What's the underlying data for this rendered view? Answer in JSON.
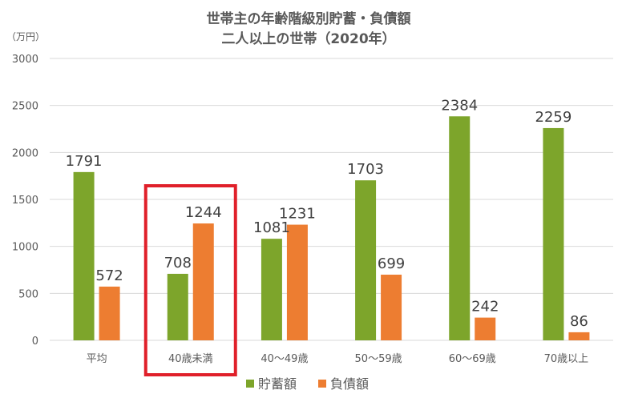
{
  "chart_data": {
    "type": "bar",
    "title": "世帯主の年齢階級別貯蓄・負債額",
    "subtitle": "二人以上の世帯（2020年）",
    "unit_label": "（万円）",
    "categories": [
      "平均",
      "40歳未満",
      "40～49歳",
      "50～59歳",
      "60～69歳",
      "70歳以上"
    ],
    "series": [
      {
        "name": "貯蓄額",
        "color": "#7da52b",
        "values": [
          1791,
          708,
          1081,
          1703,
          2384,
          2259
        ]
      },
      {
        "name": "負債額",
        "color": "#ed7d31",
        "values": [
          572,
          1244,
          1231,
          699,
          242,
          86
        ]
      }
    ],
    "ylim": [
      0,
      3000
    ],
    "yticks": [
      0,
      500,
      1000,
      1500,
      2000,
      2500,
      3000
    ],
    "grid": true,
    "legend_position": "bottom",
    "highlighted_category": "40歳未満",
    "highlight_color": "#e0202a"
  }
}
